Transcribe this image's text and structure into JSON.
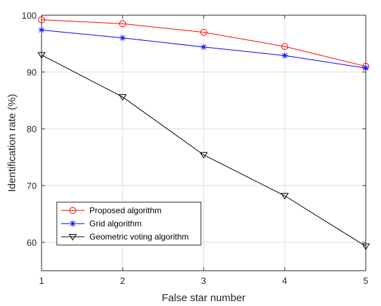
{
  "chart_data": {
    "type": "line",
    "xlabel": "False star number",
    "ylabel": "Identification rate (%)",
    "x": [
      1,
      2,
      3,
      4,
      5
    ],
    "xlim": [
      1,
      5
    ],
    "ylim": [
      55,
      100
    ],
    "xticks": [
      "1",
      "2",
      "3",
      "4",
      "5"
    ],
    "yticks": [
      "60",
      "70",
      "80",
      "90",
      "100"
    ],
    "ytick_values": [
      60,
      70,
      80,
      90,
      100
    ],
    "grid": true,
    "legend_position": "bottom-left",
    "series": [
      {
        "name": "Proposed algorithm",
        "values": [
          99.2,
          98.5,
          97.0,
          94.5,
          91.0
        ],
        "color": "#ff0000",
        "marker": "circle"
      },
      {
        "name": "Grid algorithm",
        "values": [
          97.4,
          96.0,
          94.4,
          92.9,
          90.7
        ],
        "color": "#0000ff",
        "marker": "asterisk"
      },
      {
        "name": "Geometric voting algorithm",
        "values": [
          93.0,
          85.6,
          75.4,
          68.2,
          59.3
        ],
        "color": "#000000",
        "marker": "triangle-down"
      }
    ]
  }
}
